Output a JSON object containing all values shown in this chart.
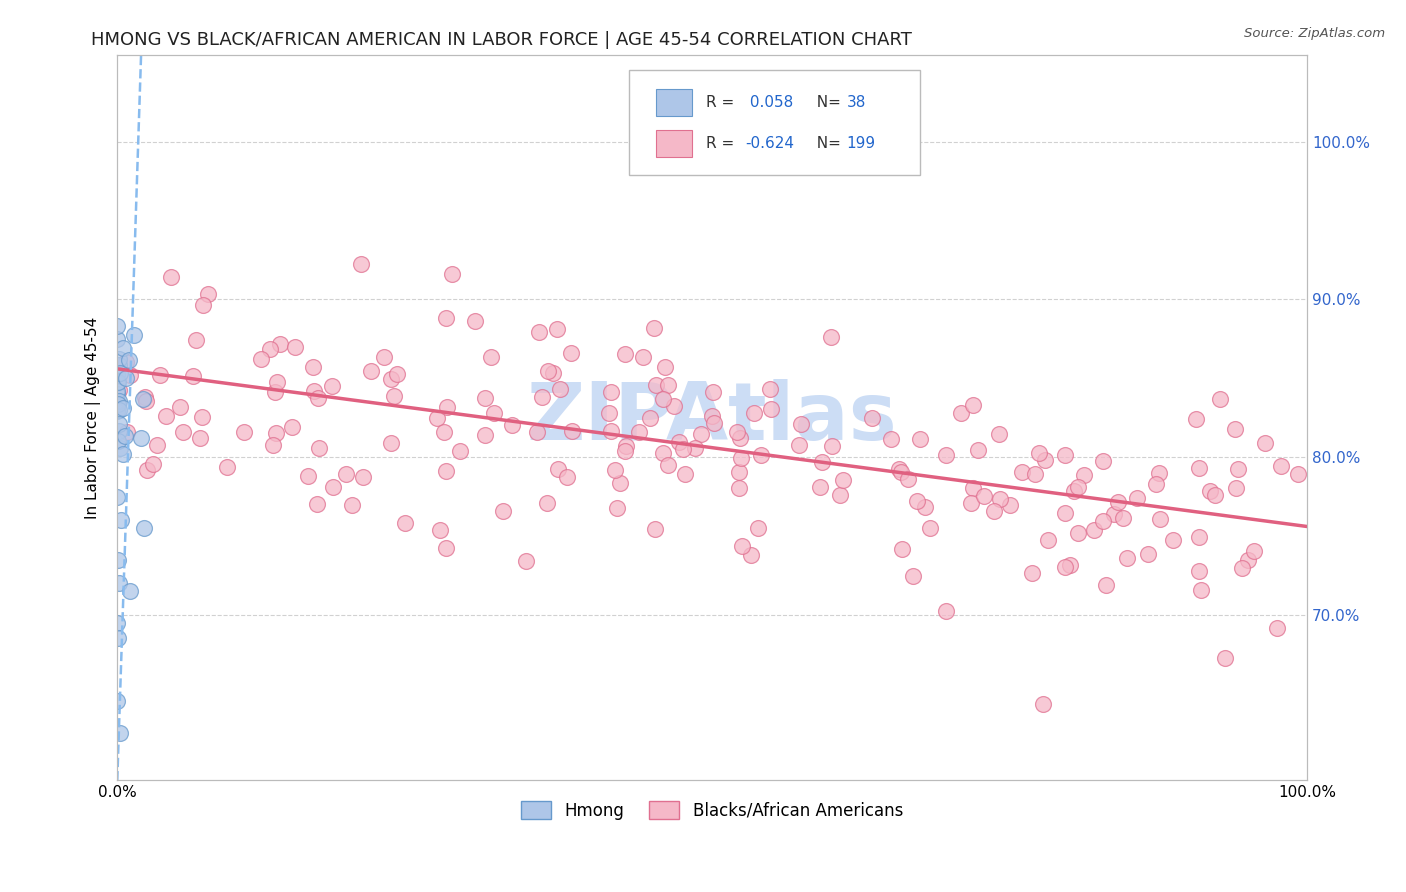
{
  "title": "HMONG VS BLACK/AFRICAN AMERICAN IN LABOR FORCE | AGE 45-54 CORRELATION CHART",
  "source_text": "Source: ZipAtlas.com",
  "ylabel": "In Labor Force | Age 45-54",
  "xlim": [
    0.0,
    1.0
  ],
  "ylim": [
    0.595,
    1.055
  ],
  "ytick_values": [
    0.7,
    0.8,
    0.9,
    1.0
  ],
  "right_ytick_labels": [
    "70.0%",
    "80.0%",
    "90.0%",
    "100.0%"
  ],
  "right_ytick_values": [
    0.7,
    0.8,
    0.9,
    1.0
  ],
  "xtick_labels": [
    "0.0%",
    "100.0%"
  ],
  "xtick_values": [
    0.0,
    1.0
  ],
  "hmong_color": "#aec6e8",
  "hmong_edge_color": "#6699cc",
  "hmong_R": 0.058,
  "hmong_N": 38,
  "hmong_line_color": "#88bbee",
  "black_color": "#f5b8c8",
  "black_edge_color": "#e07090",
  "black_R": -0.624,
  "black_N": 199,
  "black_line_color": "#e06080",
  "legend_label_hmong": "Hmong",
  "legend_label_black": "Blacks/African Americans",
  "watermark_text": "ZIPAtlas",
  "watermark_color": "#ccddf5",
  "background_color": "#ffffff",
  "grid_color": "#cccccc",
  "title_fontsize": 13,
  "axis_label_fontsize": 11,
  "tick_fontsize": 11,
  "legend_R_color": "#333333",
  "legend_val_color": "#2266cc",
  "right_tick_color": "#3366cc"
}
